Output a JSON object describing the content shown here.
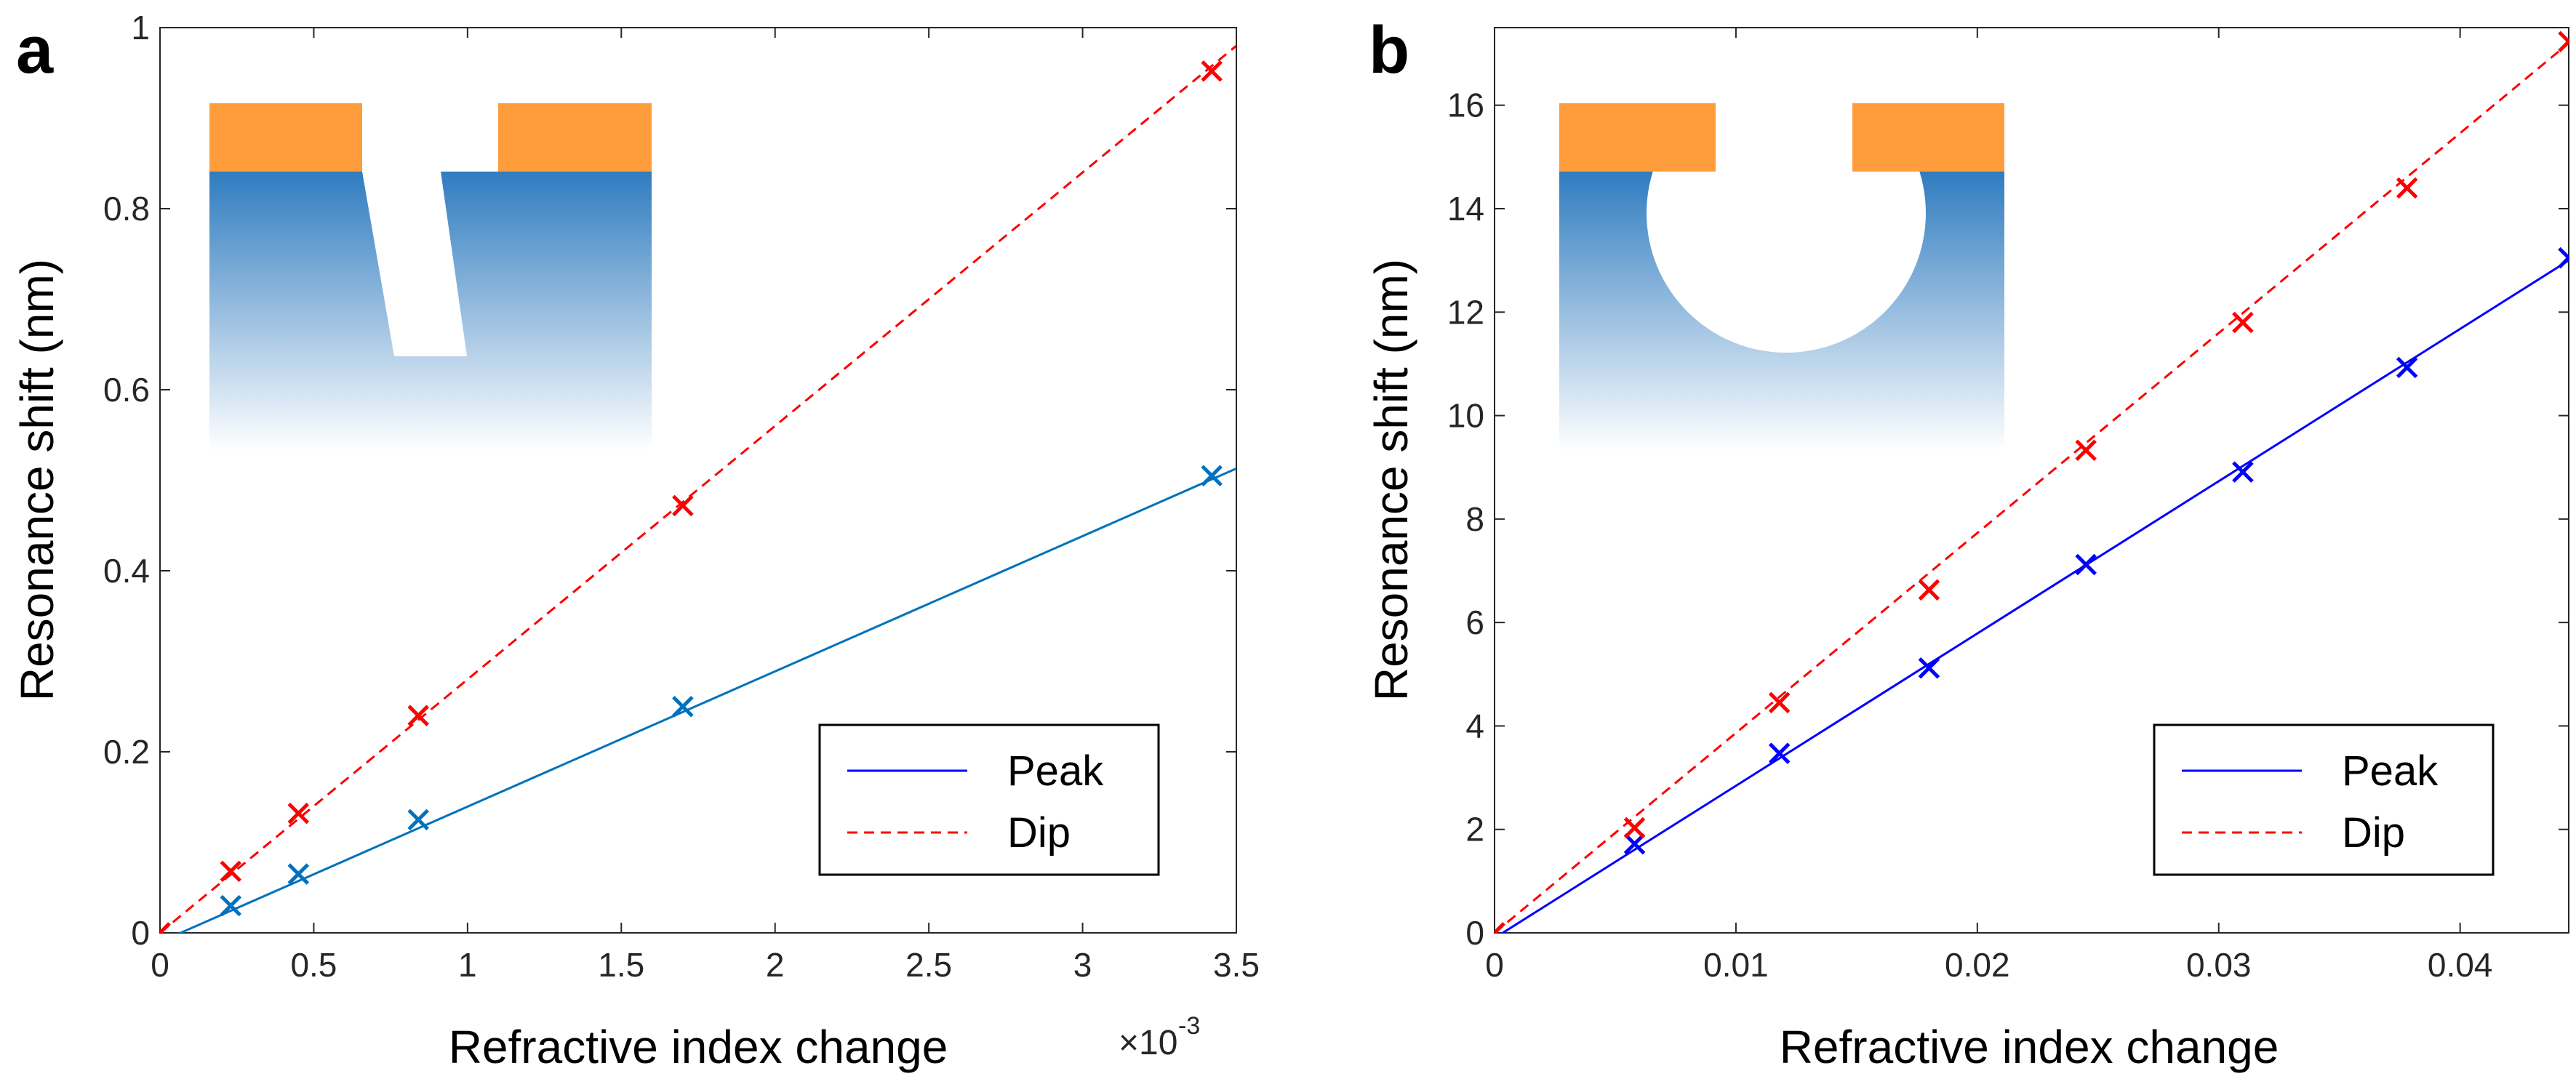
{
  "colors": {
    "peak_a": "#0072BD",
    "peak_b": "#0000FF",
    "dip": "#FF0000",
    "gold": "#FF9C3C",
    "substrate": "#2F7CC0"
  },
  "chart_data": [
    {
      "type": "scatter",
      "panel": "a",
      "xlabel": "Refractive index change",
      "ylabel": "Resonance shift (nm)",
      "x_multiplier": "×10",
      "x_multiplier_exp": "-3",
      "xlim": [
        0,
        3.5
      ],
      "ylim": [
        0,
        1
      ],
      "xticks": [
        0,
        0.5,
        1,
        1.5,
        2,
        2.5,
        3,
        3.5
      ],
      "xtick_labels": [
        "0",
        "0.5",
        "1",
        "1.5",
        "2",
        "2.5",
        "3",
        "3.5"
      ],
      "yticks": [
        0,
        0.2,
        0.4,
        0.6,
        0.8,
        1
      ],
      "ytick_labels": [
        "0",
        "0.2",
        "0.4",
        "0.6",
        "0.8",
        "1"
      ],
      "inset": "trapezoid-groove",
      "legend": {
        "position": "bottom-right",
        "entries": [
          "Peak",
          "Dip"
        ]
      },
      "series": [
        {
          "name": "Peak",
          "style": "solid",
          "color": "#0072BD",
          "x": [
            0,
            0.23,
            0.45,
            0.84,
            1.7,
            3.42
          ],
          "y": [
            0,
            0.03,
            0.065,
            0.125,
            0.25,
            0.505
          ],
          "fit": {
            "x": [
              0,
              3.5
            ],
            "y": [
              -0.01,
              0.513
            ]
          }
        },
        {
          "name": "Dip",
          "style": "dashed",
          "color": "#FF0000",
          "x": [
            0,
            0.23,
            0.45,
            0.84,
            1.7,
            3.42
          ],
          "y": [
            0,
            0.068,
            0.132,
            0.24,
            0.472,
            0.952
          ],
          "fit": {
            "x": [
              0,
              3.5
            ],
            "y": [
              0,
              0.98
            ]
          }
        }
      ]
    },
    {
      "type": "scatter",
      "panel": "b",
      "xlabel": "Refractive index change",
      "ylabel": "Resonance shift (nm)",
      "xlim": [
        0,
        0.0445
      ],
      "ylim": [
        0,
        17.5
      ],
      "xticks": [
        0,
        0.01,
        0.02,
        0.03,
        0.04
      ],
      "xtick_labels": [
        "0",
        "0.01",
        "0.02",
        "0.03",
        "0.04"
      ],
      "yticks": [
        0,
        2,
        4,
        6,
        8,
        10,
        12,
        14,
        16
      ],
      "ytick_labels": [
        "0",
        "2",
        "4",
        "6",
        "8",
        "10",
        "12",
        "14",
        "16"
      ],
      "inset": "circular-cavity",
      "legend": {
        "position": "bottom-right",
        "entries": [
          "Peak",
          "Dip"
        ]
      },
      "series": [
        {
          "name": "Peak",
          "style": "solid",
          "color": "#0000FF",
          "x": [
            0,
            0.0058,
            0.0118,
            0.018,
            0.0245,
            0.031,
            0.0378,
            0.0445
          ],
          "y": [
            0,
            1.72,
            3.47,
            5.12,
            7.12,
            8.91,
            10.93,
            13.05
          ],
          "fit": {
            "x": [
              0,
              0.0445
            ],
            "y": [
              -0.1,
              13.0
            ]
          }
        },
        {
          "name": "Dip",
          "style": "dashed",
          "color": "#FF0000",
          "x": [
            0,
            0.0058,
            0.0118,
            0.018,
            0.0245,
            0.031,
            0.0378,
            0.0445
          ],
          "y": [
            0,
            2.03,
            4.45,
            6.63,
            9.33,
            11.8,
            14.4,
            17.23
          ],
          "fit": {
            "x": [
              0,
              0.0445
            ],
            "y": [
              0,
              17.2
            ]
          }
        }
      ]
    }
  ]
}
